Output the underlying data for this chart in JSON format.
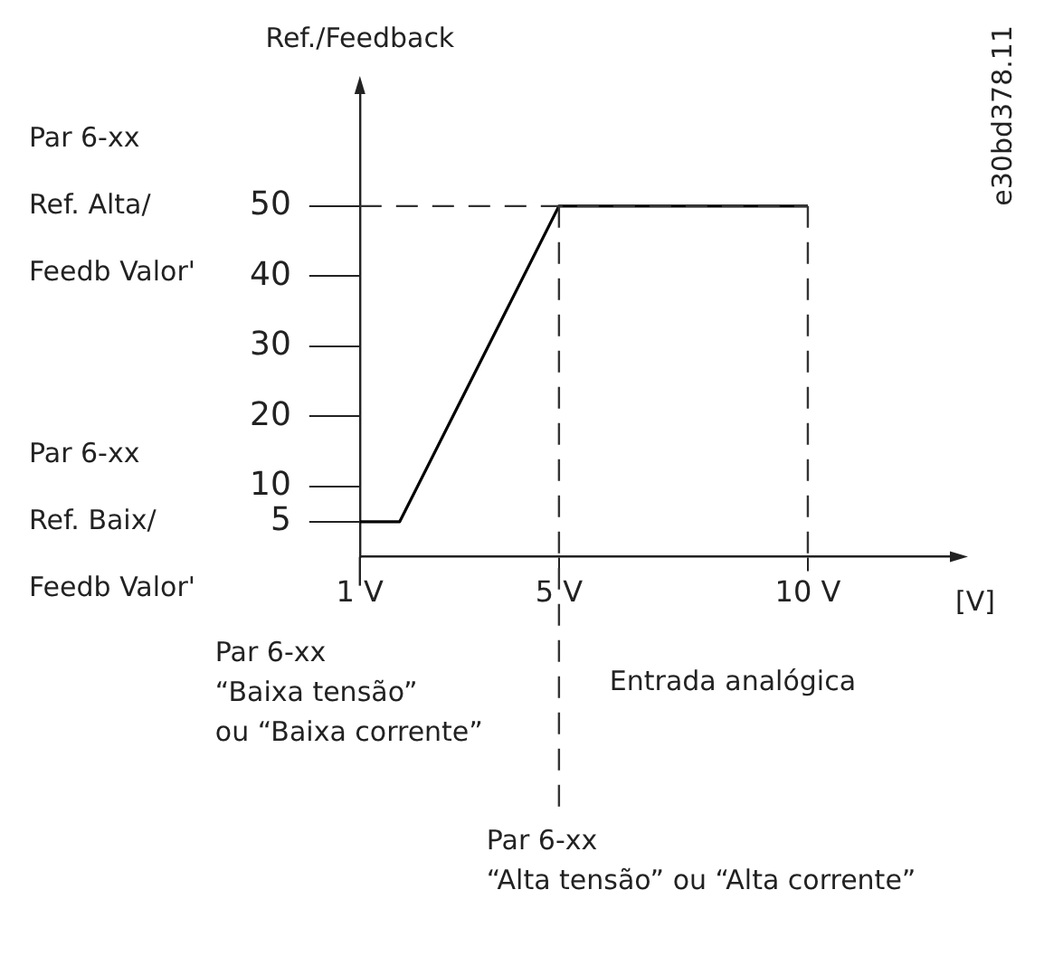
{
  "chart_data": {
    "type": "line",
    "ylabel": "Ref./Feedback",
    "xlabel": "[V]",
    "x": [
      1,
      1.8,
      5,
      10
    ],
    "series": [
      {
        "color": "#000000",
        "values": [
          5,
          5,
          50,
          50
        ]
      }
    ],
    "xlim": [
      1,
      13
    ],
    "xticks": [
      {
        "value": 1,
        "label": "1 V"
      },
      {
        "value": 5,
        "label": "5 V"
      },
      {
        "value": 10,
        "label": "10 V"
      }
    ],
    "ylim": [
      0,
      67
    ],
    "yticks": [
      5,
      10,
      20,
      30,
      40,
      50
    ],
    "marker": "none",
    "line_style": "solid",
    "ref_lines": [
      {
        "axis": "y",
        "value": 50,
        "line_style": "dashed",
        "color": "#333333"
      },
      {
        "axis": "x",
        "value": 5,
        "line_style": "dashed",
        "color": "#333333"
      },
      {
        "axis": "x",
        "value": 10,
        "line_style": "dashed",
        "color": "#333333"
      }
    ],
    "annotations": [
      "Par 6-xx",
      "Ref. Alta/",
      "Feedb Valor'",
      "Par 6-xx",
      "Ref. Baix/",
      "Feedb Valor'",
      "Par 6-xx",
      "“Baixa tensão”",
      "ou “Baixa corrente”",
      "Par 6-xx",
      "“Alta tensão” ou “Alta corrente”",
      "Entrada analógica",
      "e30bd378.11"
    ]
  }
}
